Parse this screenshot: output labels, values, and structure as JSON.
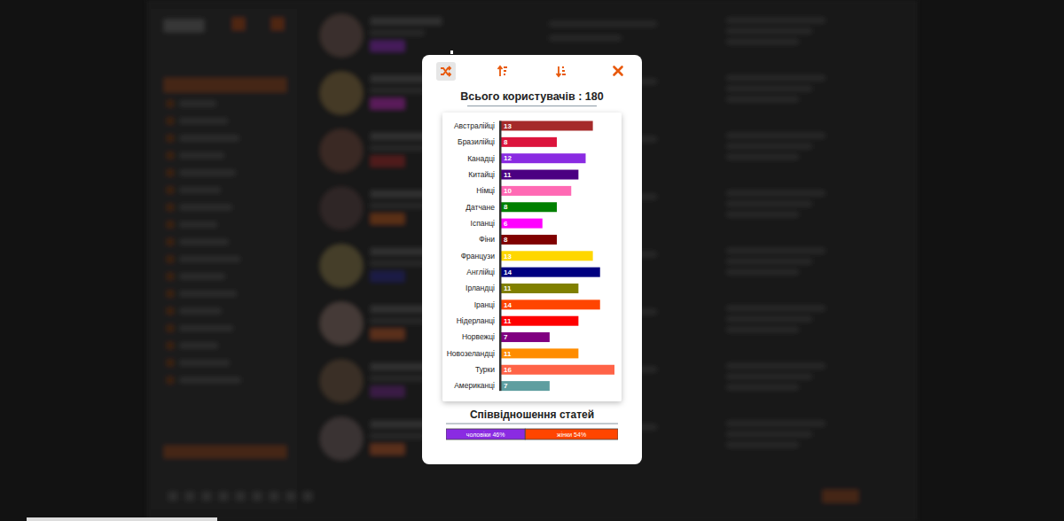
{
  "chart_data": [
    {
      "type": "bar",
      "orientation": "horizontal",
      "title": "Всього користувачів : 180",
      "categories": [
        "Австралійці",
        "Бразилійці",
        "Канадці",
        "Китайці",
        "Німці",
        "Датчане",
        "Іспанці",
        "Фіни",
        "Французи",
        "Англійці",
        "Ірландці",
        "Іранці",
        "Нідерланці",
        "Норвежці",
        "Новозеландці",
        "Турки",
        "Американці"
      ],
      "values": [
        13,
        8,
        12,
        11,
        10,
        8,
        6,
        8,
        13,
        14,
        11,
        14,
        11,
        7,
        11,
        16,
        7
      ],
      "colors": [
        "#a52a2a",
        "#dc143c",
        "#8a2be2",
        "#4b0082",
        "#ff69b4",
        "#008000",
        "#ff00ff",
        "#800000",
        "#ffd700",
        "#000080",
        "#808000",
        "#ff4500",
        "#ff0000",
        "#800080",
        "#ff8c00",
        "#ff6347",
        "#5f9ea0"
      ],
      "xlim": [
        0,
        16
      ],
      "data_labels": true,
      "tick_labels": "y"
    },
    {
      "type": "bar",
      "orientation": "horizontal",
      "stacked": true,
      "title": "Співвідношення статей",
      "categories": [
        null
      ],
      "series": [
        {
          "color": "#8a2be2",
          "values": [
            46
          ],
          "value_labels": [
            "чоловіки 46%"
          ]
        },
        {
          "color": "#ff4500",
          "values": [
            54
          ],
          "value_labels": [
            "жінки 54%"
          ]
        }
      ],
      "xlim": [
        0,
        100
      ],
      "data_labels": true,
      "tick_labels": false
    }
  ]
}
